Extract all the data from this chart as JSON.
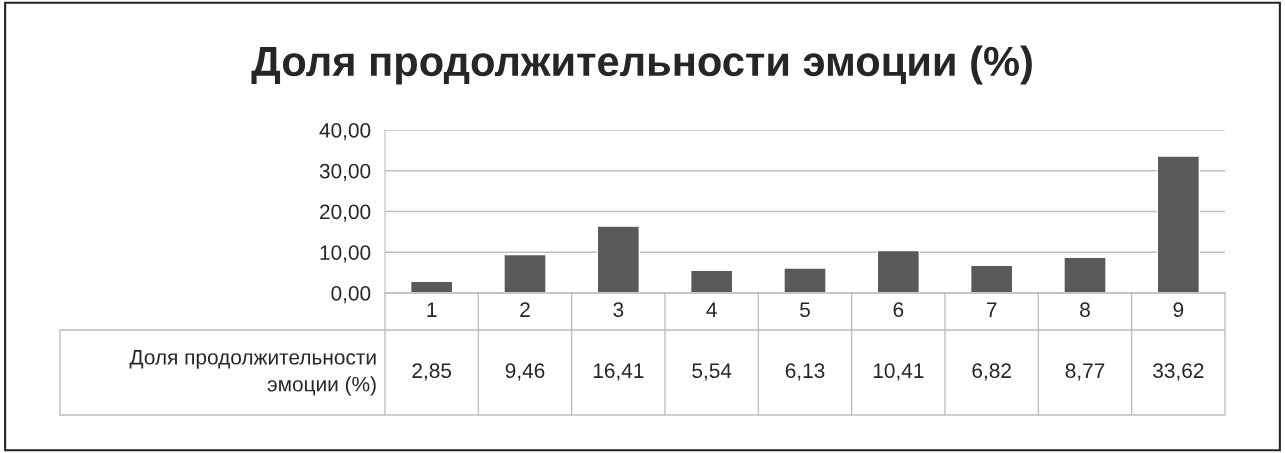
{
  "chart_data": {
    "type": "bar",
    "title": "Доля продолжительности эмоции (%)",
    "categories": [
      "1",
      "2",
      "3",
      "4",
      "5",
      "6",
      "7",
      "8",
      "9"
    ],
    "series": [
      {
        "name": "Доля продолжительности эмоции (%)",
        "color": "#595959",
        "values": [
          2.85,
          9.46,
          16.41,
          5.54,
          6.13,
          10.41,
          6.82,
          8.77,
          33.62
        ],
        "value_labels": [
          "2,85",
          "9,46",
          "16,41",
          "5,54",
          "6,13",
          "10,41",
          "6,82",
          "8,77",
          "33,62"
        ]
      }
    ],
    "ylim": [
      0,
      40
    ],
    "yticks": [
      {
        "value": 0,
        "label": "0,00"
      },
      {
        "value": 10,
        "label": "10,00"
      },
      {
        "value": 20,
        "label": "20,00"
      },
      {
        "value": 30,
        "label": "30,00"
      },
      {
        "value": 40,
        "label": "40,00"
      }
    ],
    "grid": "y"
  }
}
